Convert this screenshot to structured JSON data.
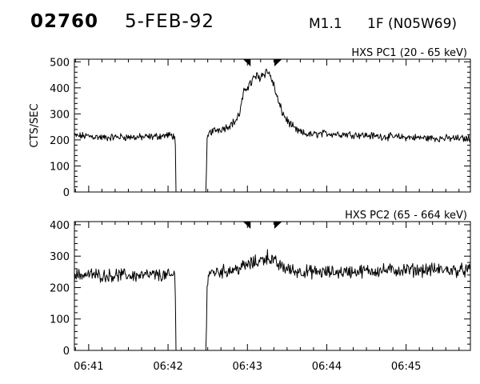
{
  "header": {
    "event_id": "02760",
    "date": "5-FEB-92",
    "flare_class": "M1.1",
    "location": "1F (N05W69)"
  },
  "chart_data": [
    {
      "type": "line",
      "title": "HXS PC1 (20 - 65 keV)",
      "ylabel": "CTS/SEC",
      "ylim": [
        0,
        510
      ],
      "yticks": [
        0,
        100,
        200,
        300,
        400,
        500
      ],
      "xlabel": "",
      "xlim_minutes": [
        40.82,
        45.81
      ],
      "xticks": [
        "06:41",
        "06:42",
        "06:43",
        "06:44",
        "06:45"
      ],
      "markers_minutes": [
        43.0,
        43.38
      ],
      "series": [
        {
          "points": [
            [
              40.82,
              215
            ],
            [
              41.0,
              215
            ],
            [
              41.2,
              208
            ],
            [
              41.4,
              212
            ],
            [
              41.6,
              210
            ],
            [
              41.8,
              212
            ],
            [
              42.0,
              218
            ],
            [
              42.09,
              215
            ],
            [
              42.1,
              0
            ],
            [
              42.48,
              0
            ],
            [
              42.49,
              195
            ],
            [
              42.52,
              228
            ],
            [
              42.6,
              238
            ],
            [
              42.7,
              245
            ],
            [
              42.75,
              252
            ],
            [
              42.8,
              262
            ],
            [
              42.85,
              272
            ],
            [
              42.9,
              300
            ],
            [
              42.95,
              375
            ],
            [
              43.0,
              408
            ],
            [
              43.05,
              420
            ],
            [
              43.1,
              445
            ],
            [
              43.15,
              440
            ],
            [
              43.2,
              455
            ],
            [
              43.25,
              465
            ],
            [
              43.3,
              440
            ],
            [
              43.35,
              390
            ],
            [
              43.4,
              335
            ],
            [
              43.45,
              300
            ],
            [
              43.5,
              275
            ],
            [
              43.6,
              240
            ],
            [
              43.7,
              225
            ],
            [
              43.8,
              220
            ],
            [
              44.0,
              225
            ],
            [
              44.2,
              222
            ],
            [
              44.4,
              220
            ],
            [
              44.6,
              215
            ],
            [
              44.8,
              212
            ],
            [
              45.0,
              210
            ],
            [
              45.2,
              208
            ],
            [
              45.4,
              206
            ],
            [
              45.6,
              206
            ],
            [
              45.81,
              205
            ]
          ]
        }
      ]
    },
    {
      "type": "line",
      "title": "HXS PC2 (65 - 664 keV)",
      "ylabel": "",
      "ylim": [
        0,
        410
      ],
      "yticks": [
        0,
        100,
        200,
        300,
        400
      ],
      "xlabel": "",
      "xlim_minutes": [
        40.82,
        45.81
      ],
      "xticks": [
        "06:41",
        "06:42",
        "06:43",
        "06:44",
        "06:45"
      ],
      "markers_minutes": [
        43.0,
        43.38
      ],
      "series": [
        {
          "points": [
            [
              40.82,
              240
            ],
            [
              41.0,
              242
            ],
            [
              41.2,
              238
            ],
            [
              41.4,
              240
            ],
            [
              41.6,
              238
            ],
            [
              41.8,
              240
            ],
            [
              42.0,
              238
            ],
            [
              42.09,
              238
            ],
            [
              42.1,
              0
            ],
            [
              42.48,
              0
            ],
            [
              42.49,
              205
            ],
            [
              42.52,
              248
            ],
            [
              42.6,
              250
            ],
            [
              42.7,
              252
            ],
            [
              42.8,
              256
            ],
            [
              42.9,
              262
            ],
            [
              43.0,
              272
            ],
            [
              43.1,
              280
            ],
            [
              43.2,
              290
            ],
            [
              43.25,
              300
            ],
            [
              43.3,
              290
            ],
            [
              43.4,
              270
            ],
            [
              43.5,
              260
            ],
            [
              43.6,
              252
            ],
            [
              43.8,
              250
            ],
            [
              44.0,
              248
            ],
            [
              44.2,
              250
            ],
            [
              44.4,
              252
            ],
            [
              44.6,
              254
            ],
            [
              44.8,
              255
            ],
            [
              45.0,
              256
            ],
            [
              45.2,
              256
            ],
            [
              45.4,
              257
            ],
            [
              45.6,
              255
            ],
            [
              45.81,
              255
            ]
          ]
        }
      ]
    }
  ]
}
